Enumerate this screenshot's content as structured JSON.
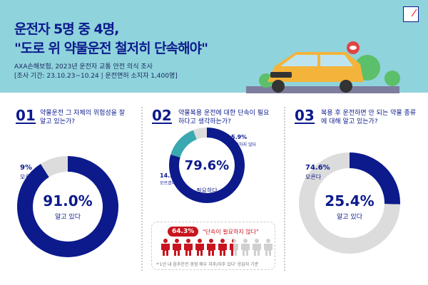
{
  "header": {
    "title_line1": "운전자 5명 중 4명,",
    "title_line2": "\"도로 위 약물운전 철저히 단속해야\"",
    "subtitle_line1": "AXA손해보험, 2023년 운전자 교통 안전 의식 조사",
    "subtitle_line2": "[조사 기간: 23.10.23~10.24 | 운전면허 소지자 1,400명]",
    "logo": "AXA"
  },
  "colors": {
    "navy": "#0c1a8c",
    "gray": "#dcdcdc",
    "teal": "#3aa8b0",
    "red": "#c8141e",
    "header_bg": "#8fd3dc"
  },
  "chart_data": [
    {
      "type": "pie",
      "number": "01",
      "question": "약물운전 그 자체의 위험성을 잘 알고 있는가?",
      "slices": [
        {
          "label": "알고 있다",
          "value": 91.0,
          "display": "91.0%",
          "color": "#0c1a8c"
        },
        {
          "label": "모른다",
          "value": 9,
          "display": "9%",
          "color": "#dcdcdc"
        }
      ]
    },
    {
      "type": "pie",
      "number": "02",
      "question": "약물복용 운전에 대한 단속이 필요하다고 생각하는가?",
      "slices": [
        {
          "label": "필요하다",
          "value": 79.6,
          "display": "79.6%",
          "color": "#0c1a8c"
        },
        {
          "label": "모르겠다",
          "value": 14.5,
          "display": "14.5%",
          "color": "#3aa8b0"
        },
        {
          "label": "필요하지 않다",
          "value": 5.9,
          "display": "5.9%",
          "color": "#dcdcdc"
        }
      ]
    },
    {
      "type": "pie",
      "number": "03",
      "question": "복용 후 운전하면 안 되는 약물 종류에 대해 알고 있는가?",
      "slices": [
        {
          "label": "알고 있다",
          "value": 25.4,
          "display": "25.4%",
          "color": "#0c1a8c"
        },
        {
          "label": "모른다",
          "value": 74.6,
          "display": "74.6%",
          "color": "#dcdcdc"
        }
      ]
    }
  ],
  "callout": {
    "percent": "64.3%",
    "value": 64.3,
    "quote": "\"단속이 필요하지 않다\"",
    "note": "*'1년 내 음주운전 경험 매우 자주/자주 있다' 응답자 기준"
  }
}
